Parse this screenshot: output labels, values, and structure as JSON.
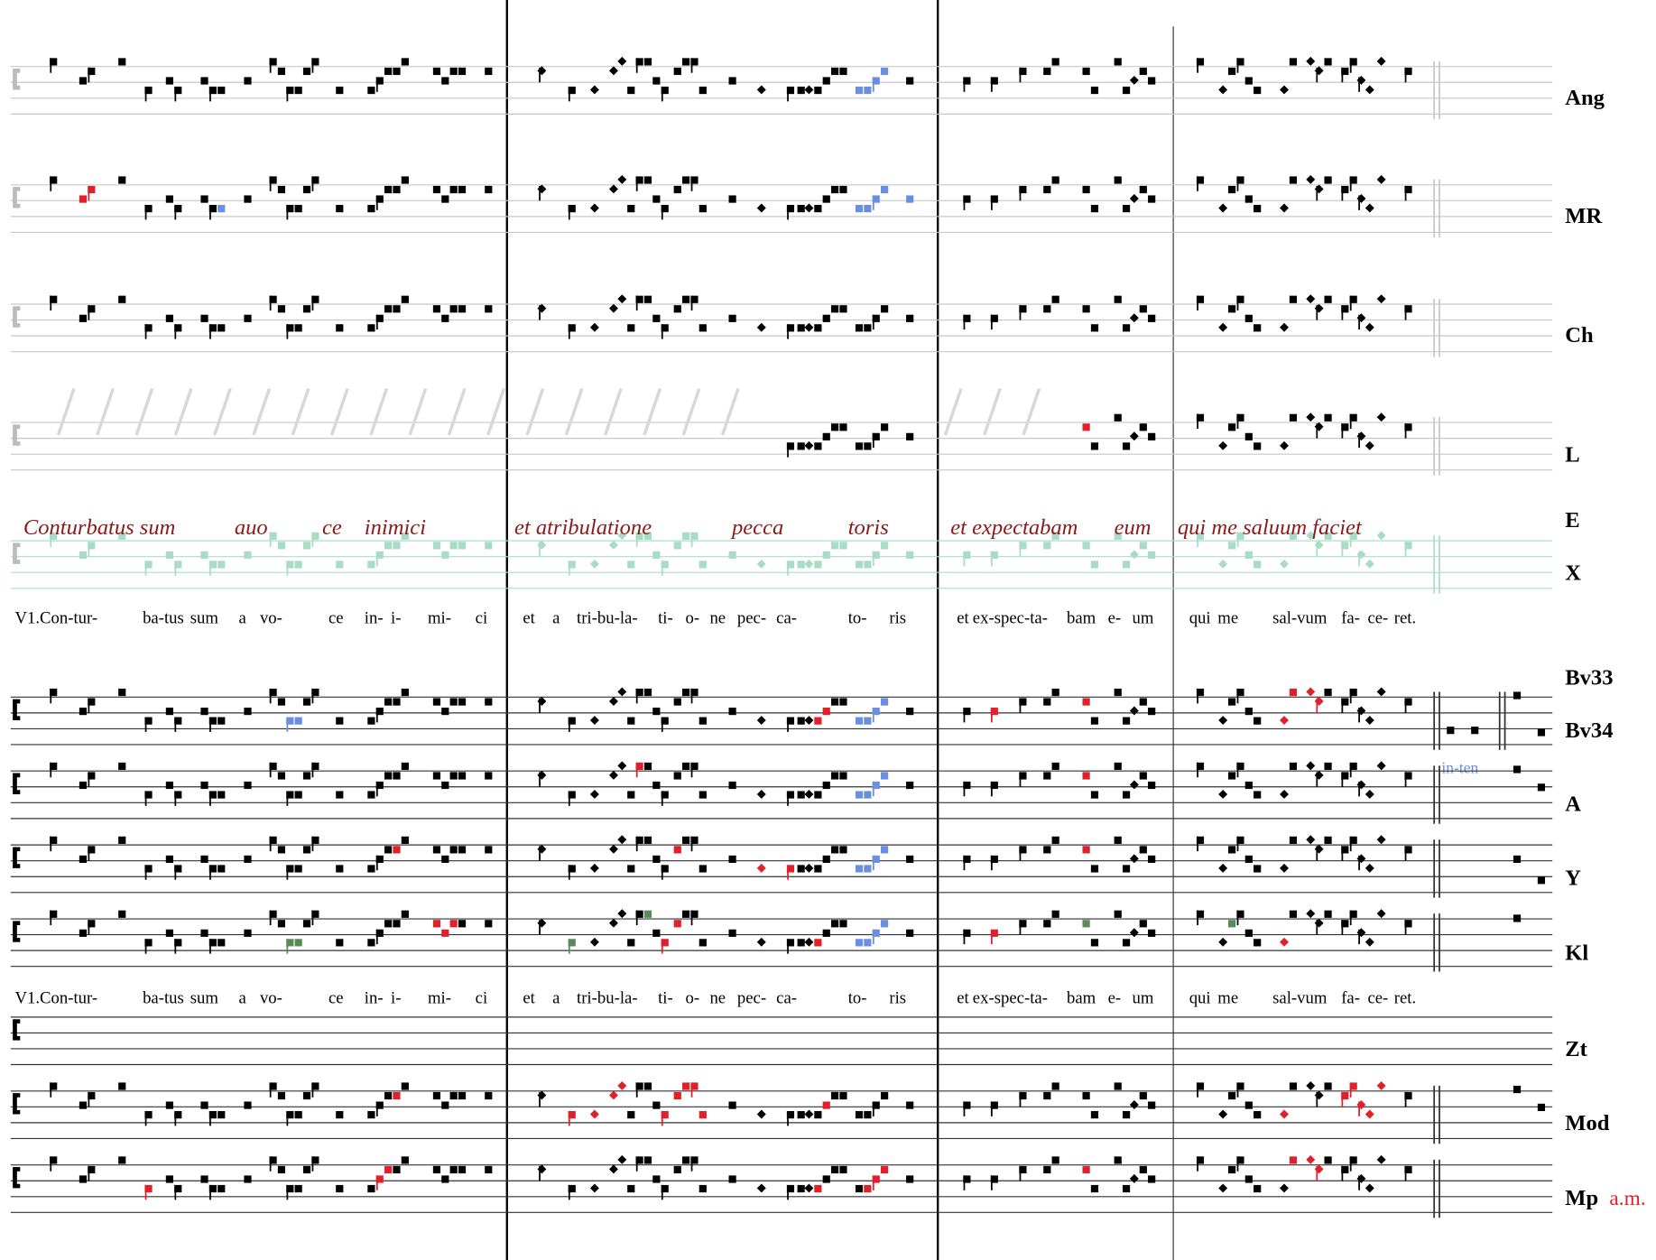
{
  "staff_labels_top": [
    "Ang",
    "MR",
    "Ch",
    "L",
    "E",
    "X"
  ],
  "manuscript_text": [
    "Conturbatus sum",
    "auo",
    "ce",
    "inimici",
    "et atribulatione",
    "pecca",
    "toris",
    "et expectabam",
    "eum",
    "qui me saluum faciet"
  ],
  "lyrics": [
    "V1.Con-tur-",
    "ba-tus",
    "sum",
    "a",
    "vo-",
    "ce",
    "in-",
    "i-",
    "mi-",
    "ci",
    "et",
    "a",
    "tri-bu-la-",
    "ti-",
    "o-",
    "ne",
    "pec-",
    "ca-",
    "to-",
    "ris",
    "et",
    "ex-spec-ta-",
    "bam",
    "e-",
    "um",
    "qui",
    "me",
    "sal-vum",
    "fa-",
    "ce-",
    "ret."
  ],
  "staff_labels_bottom": [
    "Bv33",
    "Bv34",
    "A",
    "Y",
    "Kl",
    "Zt",
    "Mod",
    "Mp"
  ],
  "annotations": {
    "in_ten": "in-ten",
    "am": "a.m."
  }
}
